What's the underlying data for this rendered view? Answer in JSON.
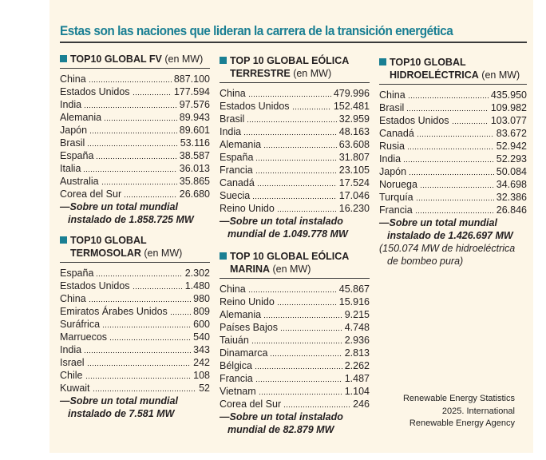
{
  "title": "Estas son las naciones que lideran la carrera de la transición energética",
  "accent_color": "#1a7f93",
  "background_color": "#fdf6e7",
  "tables": [
    {
      "id": "fv",
      "title_bold_1": "TOP10 GLOBAL FV",
      "title_bold_2": "",
      "unit": "(en MW)",
      "rows": [
        {
          "country": "China",
          "value": "887.100"
        },
        {
          "country": "Estados Unidos",
          "value": "177.594"
        },
        {
          "country": "India",
          "value": "97.576"
        },
        {
          "country": "Alemania",
          "value": "89.943"
        },
        {
          "country": "Japón",
          "value": "89.601"
        },
        {
          "country": "Brasil",
          "value": "53.116"
        },
        {
          "country": "España",
          "value": "38.587"
        },
        {
          "country": "Italia",
          "value": "36.013"
        },
        {
          "country": "Australia",
          "value": "35.865"
        },
        {
          "country": "Corea del Sur",
          "value": "26.680"
        }
      ],
      "note_1": "—Sobre un total mundial",
      "note_2": "instalado de 1.858.725 MW",
      "extra_1": "",
      "extra_2": ""
    },
    {
      "id": "termosolar",
      "title_bold_1": "TOP10 GLOBAL",
      "title_bold_2": "TERMOSOLAR",
      "unit": "(en MW)",
      "rows": [
        {
          "country": "España",
          "value": "2.302"
        },
        {
          "country": "Estados Unidos",
          "value": "1.480"
        },
        {
          "country": "China",
          "value": "980"
        },
        {
          "country": "Emiratos Árabes Unidos",
          "value": "809"
        },
        {
          "country": "Suráfrica",
          "value": "600"
        },
        {
          "country": "Marruecos",
          "value": "540"
        },
        {
          "country": "India",
          "value": "343"
        },
        {
          "country": "Israel",
          "value": "242"
        },
        {
          "country": "Chile",
          "value": "108"
        },
        {
          "country": "Kuwait",
          "value": "52"
        }
      ],
      "note_1": "—Sobre un total mundial",
      "note_2": "instalado de 7.581 MW",
      "extra_1": "",
      "extra_2": ""
    },
    {
      "id": "eolica-terrestre",
      "title_bold_1": "TOP 10 GLOBAL EÓLICA",
      "title_bold_2": "TERRESTRE",
      "unit": "(en MW)",
      "rows": [
        {
          "country": "China",
          "value": "479.996"
        },
        {
          "country": "Estados Unidos",
          "value": "152.481"
        },
        {
          "country": "Brasil",
          "value": "32.959"
        },
        {
          "country": "India",
          "value": "48.163"
        },
        {
          "country": "Alemania",
          "value": "63.608"
        },
        {
          "country": "España",
          "value": "31.807"
        },
        {
          "country": "Francia",
          "value": "23.105"
        },
        {
          "country": "Canadá",
          "value": "17.524"
        },
        {
          "country": "Suecia",
          "value": "17.046"
        },
        {
          "country": "Reino Unido",
          "value": "16.230"
        }
      ],
      "note_1": "—Sobre un total instalado",
      "note_2": "mundial de 1.049.778 MW",
      "extra_1": "",
      "extra_2": ""
    },
    {
      "id": "eolica-marina",
      "title_bold_1": "TOP 10 GLOBAL EÓLICA",
      "title_bold_2": "MARINA",
      "unit": "(en MW)",
      "rows": [
        {
          "country": "China",
          "value": "45.867"
        },
        {
          "country": "Reino Unido",
          "value": "15.916"
        },
        {
          "country": "Alemania",
          "value": "9.215"
        },
        {
          "country": "Países Bajos",
          "value": "4.748"
        },
        {
          "country": "Taiuán",
          "value": "2.936"
        },
        {
          "country": "Dinamarca",
          "value": "2.813"
        },
        {
          "country": "Bélgica",
          "value": "2.262"
        },
        {
          "country": "Francia",
          "value": "1.487"
        },
        {
          "country": "Vietnam",
          "value": "1.104"
        },
        {
          "country": "Corea del Sur",
          "value": "246"
        }
      ],
      "note_1": "—Sobre un total instalado",
      "note_2": "mundial de 82.879 MW",
      "extra_1": "",
      "extra_2": ""
    },
    {
      "id": "hidroelectrica",
      "title_bold_1": "TOP10 GLOBAL",
      "title_bold_2": "HIDROELÉCTRICA",
      "unit": "(en MW)",
      "rows": [
        {
          "country": "China",
          "value": "435.950"
        },
        {
          "country": "Brasil",
          "value": "109.982"
        },
        {
          "country": "Estados Unidos",
          "value": "103.077"
        },
        {
          "country": "Canadá",
          "value": "83.672"
        },
        {
          "country": "Rusia",
          "value": "52.942"
        },
        {
          "country": "India",
          "value": "52.293"
        },
        {
          "country": "Japón",
          "value": "50.084"
        },
        {
          "country": "Noruega",
          "value": "34.698"
        },
        {
          "country": "Turquía",
          "value": "32.386"
        },
        {
          "country": "Francia",
          "value": "26.846"
        }
      ],
      "note_1": "—Sobre un total mundial",
      "note_2": "instalado de 1.426.697 MW",
      "extra_1": "(150.074 MW de hidroeléctrica",
      "extra_2": "de bombeo pura)"
    }
  ],
  "source": {
    "line_1": "Renewable Energy Statistics",
    "line_2": "2025. International",
    "line_3": "Renewable Energy Agency"
  }
}
